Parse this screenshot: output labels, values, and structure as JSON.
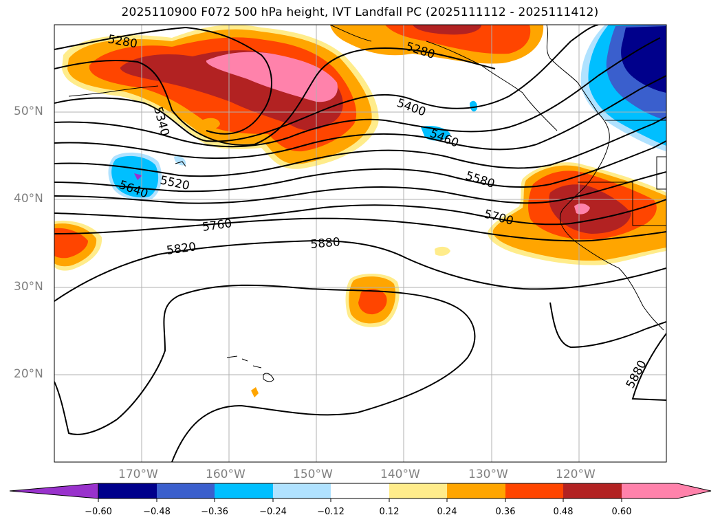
{
  "title": "2025110900 F072 500 hPa height, IVT Landfall PC (2025111112 - 2025111412)",
  "map": {
    "extent_lon": [
      -180,
      -110
    ],
    "extent_lat": [
      10,
      60
    ],
    "gridlines": true,
    "lat_labels": [
      "50°N",
      "40°N",
      "30°N",
      "20°N"
    ],
    "lon_labels": [
      "170°W",
      "160°W",
      "150°W",
      "140°W",
      "130°W",
      "120°W"
    ],
    "contour_labels": [
      "5280",
      "5280",
      "5340",
      "5400",
      "5460",
      "5520",
      "5580",
      "5640",
      "5700",
      "5760",
      "5820",
      "5880",
      "5880"
    ],
    "features": {
      "contours": "500 hPa geopotential height (m)",
      "shading": "IVT Landfall PC"
    }
  },
  "colorbar": {
    "extend": "both",
    "colors": [
      "#9932cc",
      "#00008b",
      "#3a5fcd",
      "#00bfff",
      "#b0e2ff",
      "#ffffff",
      "#ffec8b",
      "#ffa500",
      "#ff4500",
      "#b22222",
      "#ff82ab",
      "#ff82ab"
    ],
    "tick_labels": [
      "−0.60",
      "−0.48",
      "−0.36",
      "−0.24",
      "−0.12",
      "0.12",
      "0.24",
      "0.36",
      "0.48",
      "0.60"
    ]
  }
}
